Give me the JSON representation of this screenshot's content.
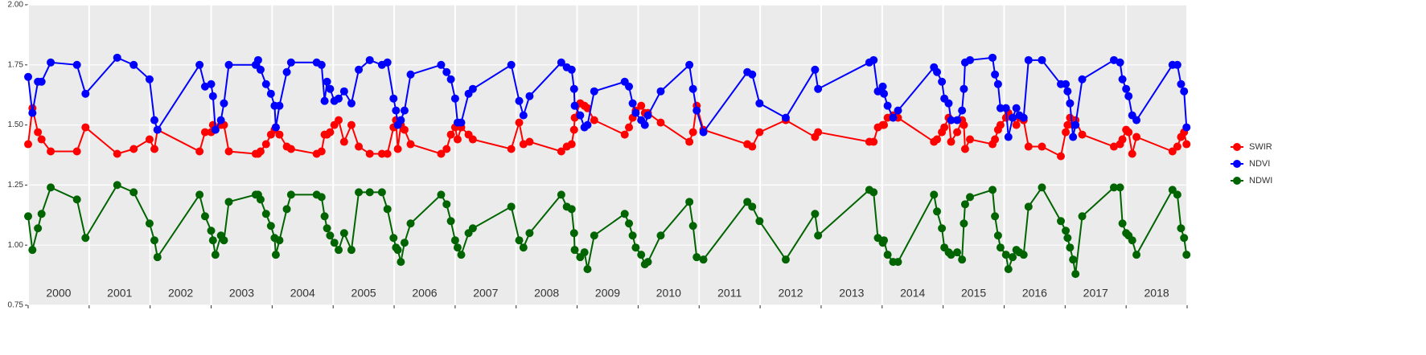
{
  "chart_data": {
    "type": "line",
    "x": [
      2000.0,
      2000.07,
      2000.16,
      2000.22,
      2000.37,
      2000.8,
      2000.94,
      2001.46,
      2001.73,
      2001.99,
      2002.07,
      2002.12,
      2002.81,
      2002.9,
      2003.0,
      2003.03,
      2003.07,
      2003.16,
      2003.21,
      2003.29,
      2003.73,
      2003.77,
      2003.81,
      2003.9,
      2003.98,
      2004.04,
      2004.06,
      2004.12,
      2004.24,
      2004.31,
      2004.73,
      2004.81,
      2004.86,
      2004.9,
      2004.95,
      2005.02,
      2005.09,
      2005.18,
      2005.3,
      2005.42,
      2005.6,
      2005.8,
      2005.89,
      2005.99,
      2006.03,
      2006.06,
      2006.11,
      2006.17,
      2006.27,
      2006.77,
      2006.86,
      2006.93,
      2007.0,
      2007.04,
      2007.1,
      2007.22,
      2007.29,
      2007.92,
      2008.05,
      2008.12,
      2008.22,
      2008.74,
      2008.83,
      2008.91,
      2008.95,
      2008.96,
      2009.05,
      2009.12,
      2009.17,
      2009.28,
      2009.78,
      2009.85,
      2009.91,
      2009.96,
      2010.05,
      2010.11,
      2010.16,
      2010.37,
      2010.84,
      2010.9,
      2010.96,
      2011.07,
      2011.79,
      2011.87,
      2011.99,
      2012.42,
      2012.9,
      2012.95,
      2013.79,
      2013.86,
      2013.93,
      2014.01,
      2014.03,
      2014.09,
      2014.18,
      2014.26,
      2014.85,
      2014.9,
      2014.98,
      2015.02,
      2015.09,
      2015.13,
      2015.23,
      2015.31,
      2015.34,
      2015.36,
      2015.44,
      2015.81,
      2015.85,
      2015.9,
      2015.94,
      2016.03,
      2016.07,
      2016.14,
      2016.2,
      2016.25,
      2016.32,
      2016.4,
      2016.62,
      2016.93,
      2017.01,
      2017.04,
      2017.08,
      2017.13,
      2017.17,
      2017.28,
      2017.8,
      2017.9,
      2017.94,
      2018.0,
      2018.04,
      2018.1,
      2018.17,
      2018.76,
      2018.84,
      2018.9,
      2018.95,
      2018.99
    ],
    "series": [
      {
        "name": "SWIR",
        "color": "#ff0000",
        "values": [
          1.42,
          1.57,
          1.47,
          1.44,
          1.39,
          1.39,
          1.49,
          1.38,
          1.4,
          1.44,
          1.4,
          1.48,
          1.39,
          1.47,
          1.47,
          1.5,
          1.48,
          1.5,
          1.5,
          1.39,
          1.38,
          1.38,
          1.39,
          1.42,
          1.46,
          1.48,
          1.49,
          1.46,
          1.41,
          1.4,
          1.38,
          1.39,
          1.46,
          1.46,
          1.47,
          1.5,
          1.52,
          1.43,
          1.5,
          1.41,
          1.38,
          1.38,
          1.38,
          1.49,
          1.52,
          1.4,
          1.5,
          1.48,
          1.42,
          1.38,
          1.4,
          1.46,
          1.49,
          1.44,
          1.49,
          1.46,
          1.44,
          1.4,
          1.51,
          1.42,
          1.43,
          1.39,
          1.41,
          1.42,
          1.48,
          1.53,
          1.59,
          1.58,
          1.57,
          1.52,
          1.46,
          1.49,
          1.53,
          1.56,
          1.58,
          1.55,
          1.55,
          1.51,
          1.43,
          1.47,
          1.58,
          1.48,
          1.42,
          1.41,
          1.47,
          1.52,
          1.45,
          1.47,
          1.43,
          1.43,
          1.49,
          1.5,
          1.5,
          1.53,
          1.54,
          1.53,
          1.43,
          1.44,
          1.47,
          1.49,
          1.53,
          1.43,
          1.47,
          1.52,
          1.5,
          1.4,
          1.44,
          1.42,
          1.44,
          1.48,
          1.5,
          1.53,
          1.55,
          1.53,
          1.5,
          1.53,
          1.52,
          1.41,
          1.41,
          1.37,
          1.47,
          1.5,
          1.53,
          1.5,
          1.52,
          1.46,
          1.41,
          1.42,
          1.44,
          1.48,
          1.47,
          1.38,
          1.45,
          1.39,
          1.41,
          1.45,
          1.47,
          1.42
        ]
      },
      {
        "name": "NDVI",
        "color": "#0000ff",
        "values": [
          1.7,
          1.55,
          1.68,
          1.68,
          1.76,
          1.75,
          1.63,
          1.78,
          1.75,
          1.69,
          1.52,
          1.48,
          1.75,
          1.66,
          1.67,
          1.62,
          1.48,
          1.52,
          1.59,
          1.75,
          1.75,
          1.77,
          1.73,
          1.67,
          1.63,
          1.58,
          1.49,
          1.58,
          1.72,
          1.76,
          1.76,
          1.75,
          1.6,
          1.68,
          1.65,
          1.6,
          1.61,
          1.64,
          1.59,
          1.73,
          1.77,
          1.75,
          1.76,
          1.61,
          1.56,
          1.5,
          1.52,
          1.56,
          1.71,
          1.75,
          1.72,
          1.69,
          1.61,
          1.51,
          1.51,
          1.63,
          1.65,
          1.75,
          1.6,
          1.54,
          1.62,
          1.76,
          1.74,
          1.73,
          1.65,
          1.58,
          1.54,
          1.49,
          1.5,
          1.64,
          1.68,
          1.66,
          1.59,
          1.55,
          1.52,
          1.5,
          1.54,
          1.64,
          1.75,
          1.65,
          1.56,
          1.47,
          1.72,
          1.71,
          1.59,
          1.53,
          1.73,
          1.65,
          1.76,
          1.77,
          1.64,
          1.66,
          1.63,
          1.58,
          1.53,
          1.56,
          1.74,
          1.72,
          1.68,
          1.61,
          1.59,
          1.52,
          1.52,
          1.56,
          1.65,
          1.76,
          1.77,
          1.78,
          1.71,
          1.67,
          1.57,
          1.57,
          1.45,
          1.53,
          1.57,
          1.54,
          1.53,
          1.77,
          1.77,
          1.67,
          1.67,
          1.64,
          1.59,
          1.45,
          1.5,
          1.69,
          1.77,
          1.76,
          1.69,
          1.65,
          1.62,
          1.54,
          1.52,
          1.75,
          1.75,
          1.67,
          1.64,
          1.49
        ]
      },
      {
        "name": "NDWI",
        "color": "#006400",
        "values": [
          1.12,
          0.98,
          1.07,
          1.13,
          1.24,
          1.19,
          1.03,
          1.25,
          1.22,
          1.09,
          1.02,
          0.95,
          1.21,
          1.12,
          1.06,
          1.02,
          0.96,
          1.04,
          1.02,
          1.18,
          1.21,
          1.21,
          1.19,
          1.13,
          1.08,
          1.03,
          0.96,
          1.02,
          1.15,
          1.21,
          1.21,
          1.2,
          1.12,
          1.07,
          1.04,
          1.01,
          0.98,
          1.05,
          0.98,
          1.22,
          1.22,
          1.22,
          1.15,
          1.03,
          0.99,
          0.98,
          0.93,
          1.01,
          1.09,
          1.21,
          1.17,
          1.1,
          1.02,
          0.99,
          0.96,
          1.05,
          1.07,
          1.16,
          1.02,
          0.99,
          1.05,
          1.21,
          1.16,
          1.15,
          1.05,
          0.98,
          0.95,
          0.97,
          0.9,
          1.04,
          1.13,
          1.09,
          1.04,
          0.99,
          0.96,
          0.92,
          0.93,
          1.04,
          1.18,
          1.08,
          0.95,
          0.94,
          1.18,
          1.16,
          1.1,
          0.94,
          1.13,
          1.04,
          1.23,
          1.22,
          1.03,
          1.01,
          1.02,
          0.96,
          0.93,
          0.93,
          1.21,
          1.14,
          1.07,
          0.99,
          0.97,
          0.96,
          0.97,
          0.94,
          1.09,
          1.17,
          1.2,
          1.23,
          1.12,
          1.04,
          0.99,
          0.96,
          0.9,
          0.95,
          0.98,
          0.97,
          0.96,
          1.16,
          1.24,
          1.1,
          1.06,
          1.03,
          0.99,
          0.94,
          0.88,
          1.12,
          1.24,
          1.24,
          1.09,
          1.05,
          1.04,
          1.02,
          0.96,
          1.23,
          1.21,
          1.07,
          1.03,
          0.96
        ]
      }
    ],
    "xlim": [
      2000,
      2019
    ],
    "xticks": [
      2000,
      2001,
      2002,
      2003,
      2004,
      2005,
      2006,
      2007,
      2008,
      2009,
      2010,
      2011,
      2012,
      2013,
      2014,
      2015,
      2016,
      2017,
      2018,
      2019
    ],
    "year_labels": [
      "2000",
      "2001",
      "2002",
      "2003",
      "2004",
      "2005",
      "2006",
      "2007",
      "2008",
      "2009",
      "2010",
      "2011",
      "2012",
      "2013",
      "2014",
      "2015",
      "2016",
      "2017",
      "2018"
    ],
    "ylim": [
      0.75,
      2
    ],
    "yticks": [
      0.75,
      {
        "value": 1,
        "label": "1.00"
      },
      1.25,
      {
        "value": 1.5,
        "label": "1.50"
      },
      1.75,
      {
        "value": 2,
        "label": "2.00"
      }
    ],
    "grid": true,
    "legend": "right"
  }
}
